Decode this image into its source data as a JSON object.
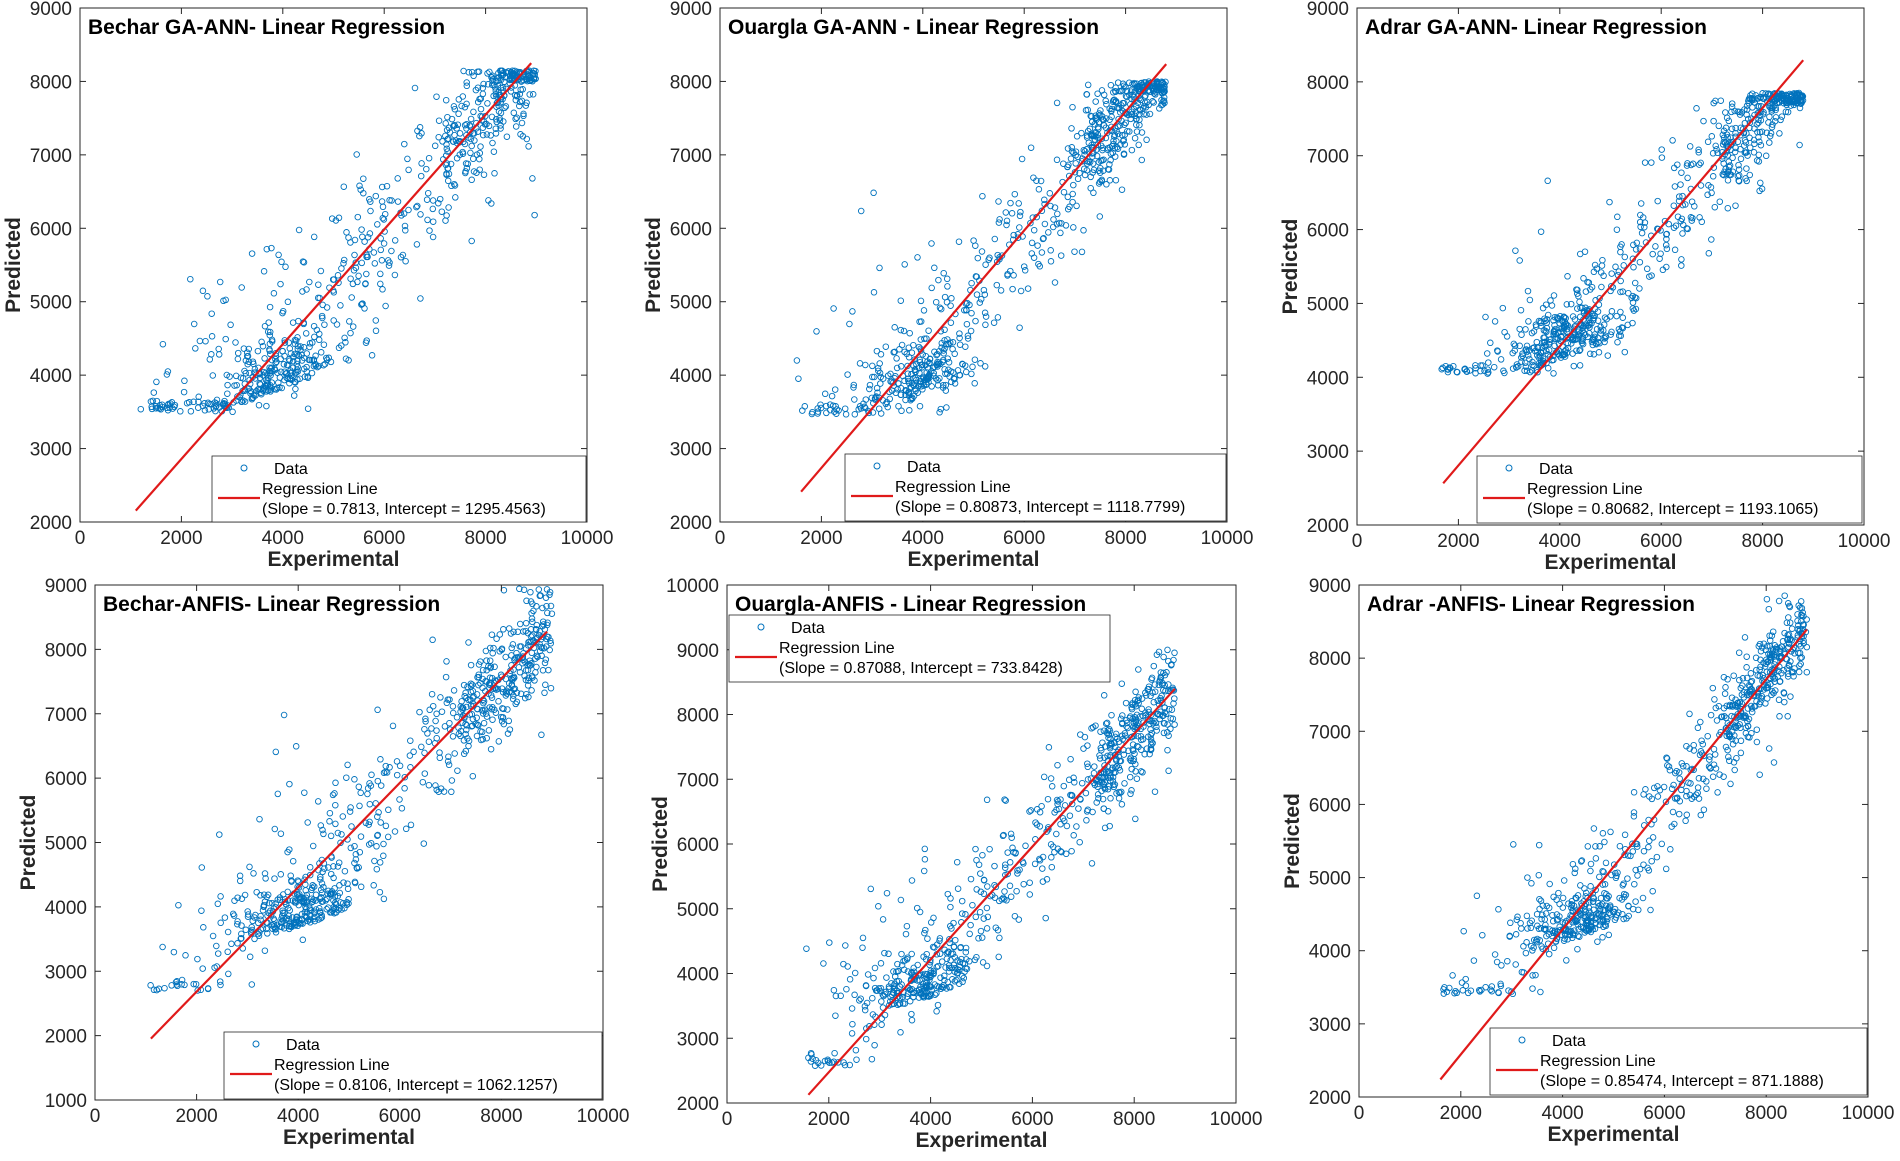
{
  "colors": {
    "data_marker": "#0072BD",
    "regression_line": "#E01A1A",
    "axes": "#262626"
  },
  "chart_data": [
    {
      "type": "scatter",
      "title": "Bechar GA-ANN- Linear Regression",
      "xlabel": "Experimental",
      "ylabel": "Predicted",
      "xlim": [
        0,
        10000
      ],
      "ylim": [
        2000,
        9000
      ],
      "xticks": [
        0,
        2000,
        4000,
        6000,
        8000,
        10000
      ],
      "yticks": [
        2000,
        3000,
        4000,
        5000,
        6000,
        7000,
        8000,
        9000
      ],
      "legend": {
        "position": "bottom-right",
        "data_label": "Data",
        "line_label": "Regression Line",
        "fit_label": "(Slope = 0.7813, Intercept = 1295.4563)"
      },
      "regression": {
        "slope": 0.7813,
        "intercept": 1295.4563,
        "x_range": [
          1100,
          8900
        ]
      },
      "point_cloud": {
        "count": 780,
        "x_range": [
          1000,
          9000
        ],
        "y_min": 3500,
        "y_max": 8150,
        "scatter_sd": 650,
        "cluster": [
          3900,
          3800
        ]
      }
    },
    {
      "type": "scatter",
      "title": "Ouargla GA-ANN - Linear Regression",
      "xlabel": "Experimental",
      "ylabel": "Predicted",
      "xlim": [
        0,
        10000
      ],
      "ylim": [
        2000,
        9000
      ],
      "xticks": [
        0,
        2000,
        4000,
        6000,
        8000,
        10000
      ],
      "yticks": [
        2000,
        3000,
        4000,
        5000,
        6000,
        7000,
        8000,
        9000
      ],
      "legend": {
        "position": "bottom-right",
        "data_label": "Data",
        "line_label": "Regression Line",
        "fit_label": "(Slope = 0.80873, Intercept = 1118.7799)"
      },
      "regression": {
        "slope": 0.80873,
        "intercept": 1118.7799,
        "x_range": [
          1600,
          8800
        ]
      },
      "point_cloud": {
        "count": 780,
        "x_range": [
          1500,
          8800
        ],
        "y_min": 3450,
        "y_max": 8000,
        "scatter_sd": 500,
        "cluster": [
          3900,
          3700
        ]
      }
    },
    {
      "type": "scatter",
      "title": "Adrar GA-ANN- Linear Regression",
      "xlabel": "Experimental",
      "ylabel": "Predicted",
      "xlim": [
        0,
        10000
      ],
      "ylim": [
        2000,
        9000
      ],
      "xticks": [
        0,
        2000,
        4000,
        6000,
        8000,
        10000
      ],
      "yticks": [
        2000,
        3000,
        4000,
        5000,
        6000,
        7000,
        8000,
        9000
      ],
      "legend": {
        "position": "bottom-right",
        "data_label": "Data",
        "line_label": "Regression Line",
        "fit_label": "(Slope = 0.80682, Intercept = 1193.1065)"
      },
      "regression": {
        "slope": 0.80682,
        "intercept": 1193.1065,
        "x_range": [
          1700,
          8800
        ]
      },
      "point_cloud": {
        "count": 780,
        "x_range": [
          1600,
          8800
        ],
        "y_min": 4050,
        "y_max": 7850,
        "scatter_sd": 480,
        "cluster": [
          4200,
          4300
        ]
      }
    },
    {
      "type": "scatter",
      "title": "Bechar-ANFIS- Linear Regression",
      "xlabel": "Experimental",
      "ylabel": "Predicted",
      "xlim": [
        0,
        10000
      ],
      "ylim": [
        1000,
        9000
      ],
      "xticks": [
        0,
        2000,
        4000,
        6000,
        8000,
        10000
      ],
      "yticks": [
        1000,
        2000,
        3000,
        4000,
        5000,
        6000,
        7000,
        8000,
        9000
      ],
      "legend": {
        "position": "bottom-right",
        "data_label": "Data",
        "line_label": "Regression Line",
        "fit_label": "(Slope = 0.8106, Intercept = 1062.1257)"
      },
      "regression": {
        "slope": 0.8106,
        "intercept": 1062.1257,
        "x_range": [
          1100,
          8900
        ]
      },
      "point_cloud": {
        "count": 780,
        "x_range": [
          1000,
          9000
        ],
        "y_min": 2700,
        "y_max": 8950,
        "scatter_sd": 600,
        "cluster": [
          4000,
          3700
        ]
      }
    },
    {
      "type": "scatter",
      "title": "Ouargla-ANFIS - Linear Regression",
      "xlabel": "Experimental",
      "ylabel": "Predicted",
      "xlim": [
        0,
        10000
      ],
      "ylim": [
        2000,
        10000
      ],
      "xticks": [
        0,
        2000,
        4000,
        6000,
        8000,
        10000
      ],
      "yticks": [
        2000,
        3000,
        4000,
        5000,
        6000,
        7000,
        8000,
        9000,
        10000
      ],
      "legend": {
        "position": "top-left",
        "data_label": "Data",
        "line_label": "Regression Line",
        "fit_label": "(Slope = 0.87088, Intercept = 733.8428)"
      },
      "regression": {
        "slope": 0.87088,
        "intercept": 733.8428,
        "x_range": [
          1600,
          8800
        ]
      },
      "point_cloud": {
        "count": 780,
        "x_range": [
          1500,
          8800
        ],
        "y_min": 2550,
        "y_max": 9050,
        "scatter_sd": 520,
        "cluster": [
          3800,
          3600
        ]
      }
    },
    {
      "type": "scatter",
      "title": "Adrar -ANFIS- Linear Regression",
      "xlabel": "Experimental",
      "ylabel": "Predicted",
      "xlim": [
        0,
        10000
      ],
      "ylim": [
        2000,
        9000
      ],
      "xticks": [
        0,
        2000,
        4000,
        6000,
        8000,
        10000
      ],
      "yticks": [
        2000,
        3000,
        4000,
        5000,
        6000,
        7000,
        8000,
        9000
      ],
      "legend": {
        "position": "bottom-right",
        "data_label": "Data",
        "line_label": "Regression Line",
        "fit_label": "(Slope = 0.85474, Intercept = 871.1888)"
      },
      "regression": {
        "slope": 0.85474,
        "intercept": 871.1888,
        "x_range": [
          1600,
          8800
        ]
      },
      "point_cloud": {
        "count": 780,
        "x_range": [
          1600,
          8800
        ],
        "y_min": 3400,
        "y_max": 8900,
        "scatter_sd": 420,
        "cluster": [
          4300,
          4200
        ]
      }
    }
  ]
}
